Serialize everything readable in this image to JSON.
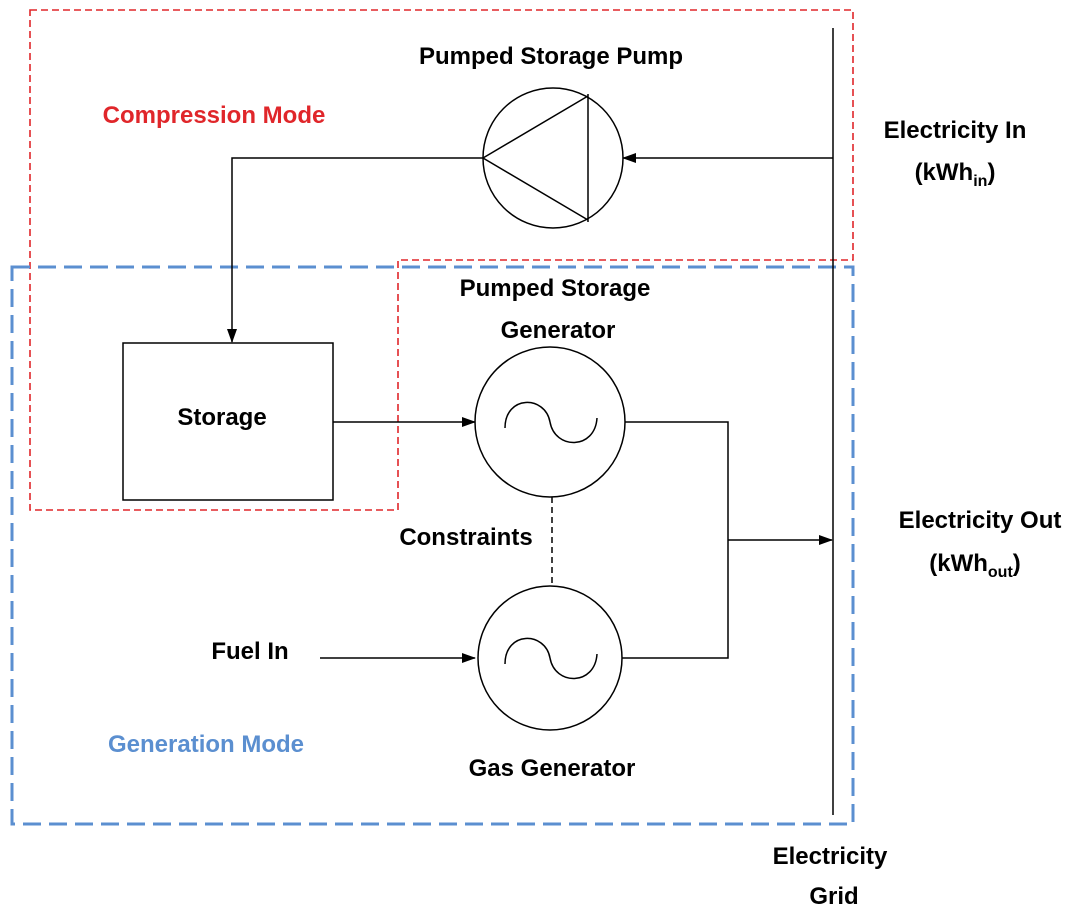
{
  "compression_mode": {
    "title": "Compression Mode"
  },
  "generation_mode": {
    "title": "Generation Mode"
  },
  "nodes": {
    "pump": {
      "label": "Pumped Storage Pump"
    },
    "storage": {
      "label": "Storage"
    },
    "ps_generator": {
      "label_line1": "Pumped Storage",
      "label_line2": "Generator"
    },
    "gas_generator": {
      "label": "Gas Generator"
    },
    "grid": {
      "label_line1": "Electricity",
      "label_line2": "Grid"
    }
  },
  "constraints": {
    "label": "Constraints"
  },
  "fuel_in": {
    "label": "Fuel In"
  },
  "electricity_in": {
    "label": "Electricity In",
    "unit_open": "(kWh",
    "unit_sub": "in",
    "unit_close": ")"
  },
  "electricity_out": {
    "label": "Electricity Out",
    "unit_open": "(kWh",
    "unit_sub": "out",
    "unit_close": ")"
  }
}
